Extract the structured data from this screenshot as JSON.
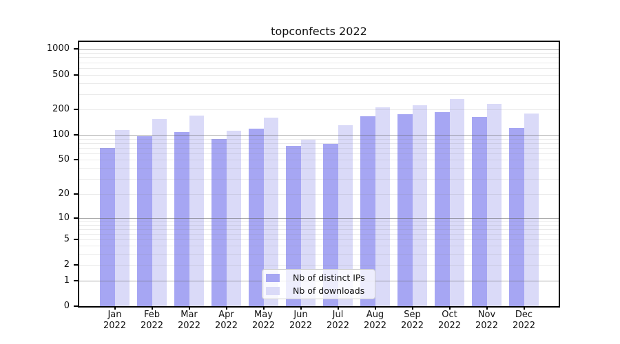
{
  "title": "topconfects 2022",
  "colors": {
    "distinct_ips": "#a6a6f3",
    "downloads": "#dadaf8",
    "major_grid": "rgba(100,100,100,0.55)",
    "minor_grid": "rgba(130,130,130,0.17)",
    "axis": "#000000",
    "text": "#111111"
  },
  "axes": {
    "y_ticks": [
      1000,
      500,
      200,
      100,
      50,
      20,
      10,
      5,
      2,
      1,
      0
    ],
    "x_months": [
      "Jan",
      "Feb",
      "Mar",
      "Apr",
      "May",
      "Jun",
      "Jul",
      "Aug",
      "Sep",
      "Oct",
      "Nov",
      "Dec"
    ],
    "x_year": "2022"
  },
  "legend": {
    "items": [
      {
        "label": "Nb of distinct IPs",
        "series_key": "distinct_ips"
      },
      {
        "label": "Nb of downloads",
        "series_key": "downloads"
      }
    ]
  },
  "chart_data": {
    "type": "bar",
    "title": "topconfects 2022",
    "categories": [
      "Jan 2022",
      "Feb 2022",
      "Mar 2022",
      "Apr 2022",
      "May 2022",
      "Jun 2022",
      "Jul 2022",
      "Aug 2022",
      "Sep 2022",
      "Oct 2022",
      "Nov 2022",
      "Dec 2022"
    ],
    "series": [
      {
        "name": "Nb of distinct IPs",
        "values": [
          70,
          97,
          109,
          90,
          119,
          74,
          78,
          166,
          176,
          184,
          162,
          121
        ]
      },
      {
        "name": "Nb of downloads",
        "values": [
          115,
          153,
          168,
          112,
          159,
          87,
          130,
          211,
          224,
          263,
          232,
          179
        ]
      }
    ],
    "xlabel": "",
    "ylabel": "",
    "yscale": "symlog",
    "yticks": [
      0,
      1,
      2,
      5,
      10,
      20,
      50,
      100,
      200,
      500,
      1000
    ],
    "ylim": [
      0,
      1200
    ],
    "grid": true,
    "grid_over_bars": true,
    "legend_position": "lower center"
  }
}
